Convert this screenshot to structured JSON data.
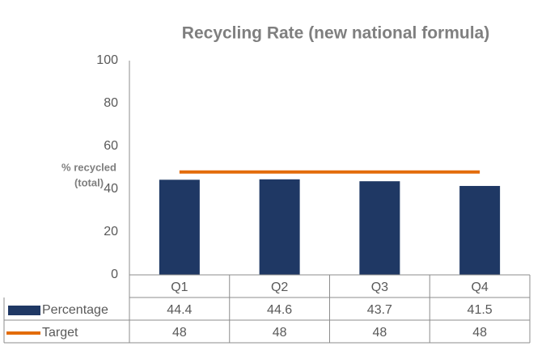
{
  "chart_data": {
    "type": "bar",
    "title": "Recycling Rate (new national formula)",
    "y_label": [
      "% recycled",
      "(total)"
    ],
    "categories": [
      "Q1",
      "Q2",
      "Q3",
      "Q4"
    ],
    "series": [
      {
        "name": "Percentage",
        "type": "bar",
        "color": "#1f3864",
        "values": [
          44.4,
          44.6,
          43.7,
          41.5
        ]
      },
      {
        "name": "Target",
        "type": "line",
        "color": "#e36c0a",
        "values": [
          48,
          48,
          48,
          48
        ]
      }
    ],
    "ylim": [
      0,
      100
    ],
    "yticks": [
      0,
      20,
      40,
      60,
      80,
      100
    ],
    "grid": false,
    "data_table": true
  }
}
